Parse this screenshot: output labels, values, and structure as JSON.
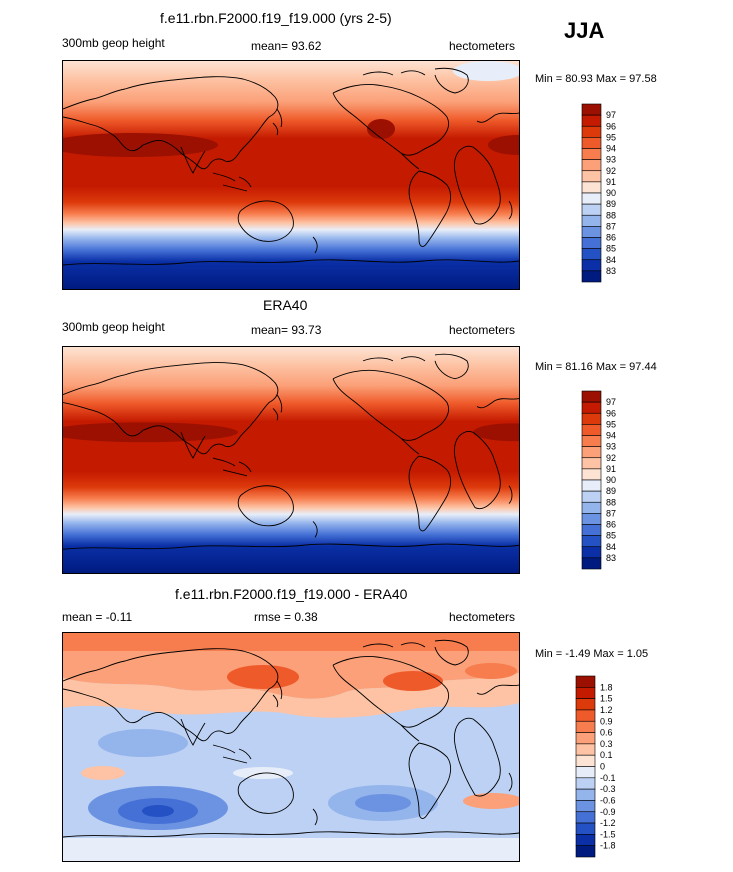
{
  "season": "JJA",
  "chart_data": [
    {
      "type": "heatmap",
      "title": "f.e11.rbn.F2000.f19_f19.000 (yrs 2-5)",
      "left_label": "300mb geop height",
      "center_label": "mean=  93.62",
      "right_label": "hectometers",
      "min_max": "Min =  80.93 Max =  97.58",
      "min": 80.93,
      "max": 97.58,
      "mean": 93.62,
      "colorbar": {
        "labels": [
          "97",
          "96",
          "95",
          "94",
          "93",
          "92",
          "91",
          "90",
          "89",
          "88",
          "87",
          "86",
          "85",
          "84",
          "83"
        ],
        "colors": [
          "#9b1000",
          "#c41a00",
          "#dd3a0c",
          "#ef5a2a",
          "#f77d4e",
          "#fba078",
          "#fdc3a4",
          "#fde3d3",
          "#e8eef9",
          "#bcd1f3",
          "#94b4ec",
          "#6c93e1",
          "#4571d6",
          "#2451c3",
          "#0a2fa6",
          "#001b80"
        ]
      },
      "latitude_profile": [
        {
          "lat": 90,
          "value": 89.0
        },
        {
          "lat": 70,
          "value": 90.0
        },
        {
          "lat": 55,
          "value": 92.0
        },
        {
          "lat": 40,
          "value": 94.5
        },
        {
          "lat": 25,
          "value": 96.6
        },
        {
          "lat": 10,
          "value": 95.6
        },
        {
          "lat": 0,
          "value": 95.5
        },
        {
          "lat": -15,
          "value": 95.2
        },
        {
          "lat": -25,
          "value": 94.0
        },
        {
          "lat": -35,
          "value": 91.5
        },
        {
          "lat": -45,
          "value": 89.0
        },
        {
          "lat": -55,
          "value": 86.5
        },
        {
          "lat": -65,
          "value": 84.5
        },
        {
          "lat": -80,
          "value": 82.5
        },
        {
          "lat": -90,
          "value": 82.0
        }
      ]
    },
    {
      "type": "heatmap",
      "title": "ERA40",
      "left_label": "300mb geop height",
      "center_label": "mean=  93.73",
      "right_label": "hectometers",
      "min_max": "Min =  81.16 Max =  97.44",
      "min": 81.16,
      "max": 97.44,
      "mean": 93.73,
      "colorbar": {
        "labels": [
          "97",
          "96",
          "95",
          "94",
          "93",
          "92",
          "91",
          "90",
          "89",
          "88",
          "87",
          "86",
          "85",
          "84",
          "83"
        ],
        "colors": [
          "#9b1000",
          "#c41a00",
          "#dd3a0c",
          "#ef5a2a",
          "#f77d4e",
          "#fba078",
          "#fdc3a4",
          "#fde3d3",
          "#e8eef9",
          "#bcd1f3",
          "#94b4ec",
          "#6c93e1",
          "#4571d6",
          "#2451c3",
          "#0a2fa6",
          "#001b80"
        ]
      },
      "latitude_profile": [
        {
          "lat": 90,
          "value": 89.2
        },
        {
          "lat": 70,
          "value": 90.2
        },
        {
          "lat": 55,
          "value": 92.3
        },
        {
          "lat": 40,
          "value": 94.6
        },
        {
          "lat": 25,
          "value": 96.5
        },
        {
          "lat": 10,
          "value": 95.7
        },
        {
          "lat": 0,
          "value": 95.6
        },
        {
          "lat": -15,
          "value": 95.3
        },
        {
          "lat": -25,
          "value": 94.1
        },
        {
          "lat": -35,
          "value": 91.6
        },
        {
          "lat": -45,
          "value": 89.1
        },
        {
          "lat": -55,
          "value": 86.7
        },
        {
          "lat": -65,
          "value": 84.6
        },
        {
          "lat": -80,
          "value": 82.6
        },
        {
          "lat": -90,
          "value": 82.1
        }
      ]
    },
    {
      "type": "heatmap",
      "title": "f.e11.rbn.F2000.f19_f19.000 - ERA40",
      "left_label": "mean =  -0.11",
      "center_label": "rmse =   0.38",
      "right_label": "hectometers",
      "min_max": "Min =  -1.49 Max =   1.05",
      "min": -1.49,
      "max": 1.05,
      "mean": -0.11,
      "rmse": 0.38,
      "colorbar": {
        "labels": [
          "1.8",
          "1.5",
          "1.2",
          "0.9",
          "0.6",
          "0.3",
          "0.1",
          "0",
          "-0.1",
          "-0.3",
          "-0.6",
          "-0.9",
          "-1.2",
          "-1.5",
          "-1.8"
        ],
        "colors": [
          "#9b1000",
          "#c41a00",
          "#dd3a0c",
          "#ef5a2a",
          "#f77d4e",
          "#fba078",
          "#fdc3a4",
          "#fde3d3",
          "#e8eef9",
          "#bcd1f3",
          "#94b4ec",
          "#6c93e1",
          "#4571d6",
          "#2451c3",
          "#0a2fa6",
          "#001b80"
        ]
      }
    }
  ]
}
